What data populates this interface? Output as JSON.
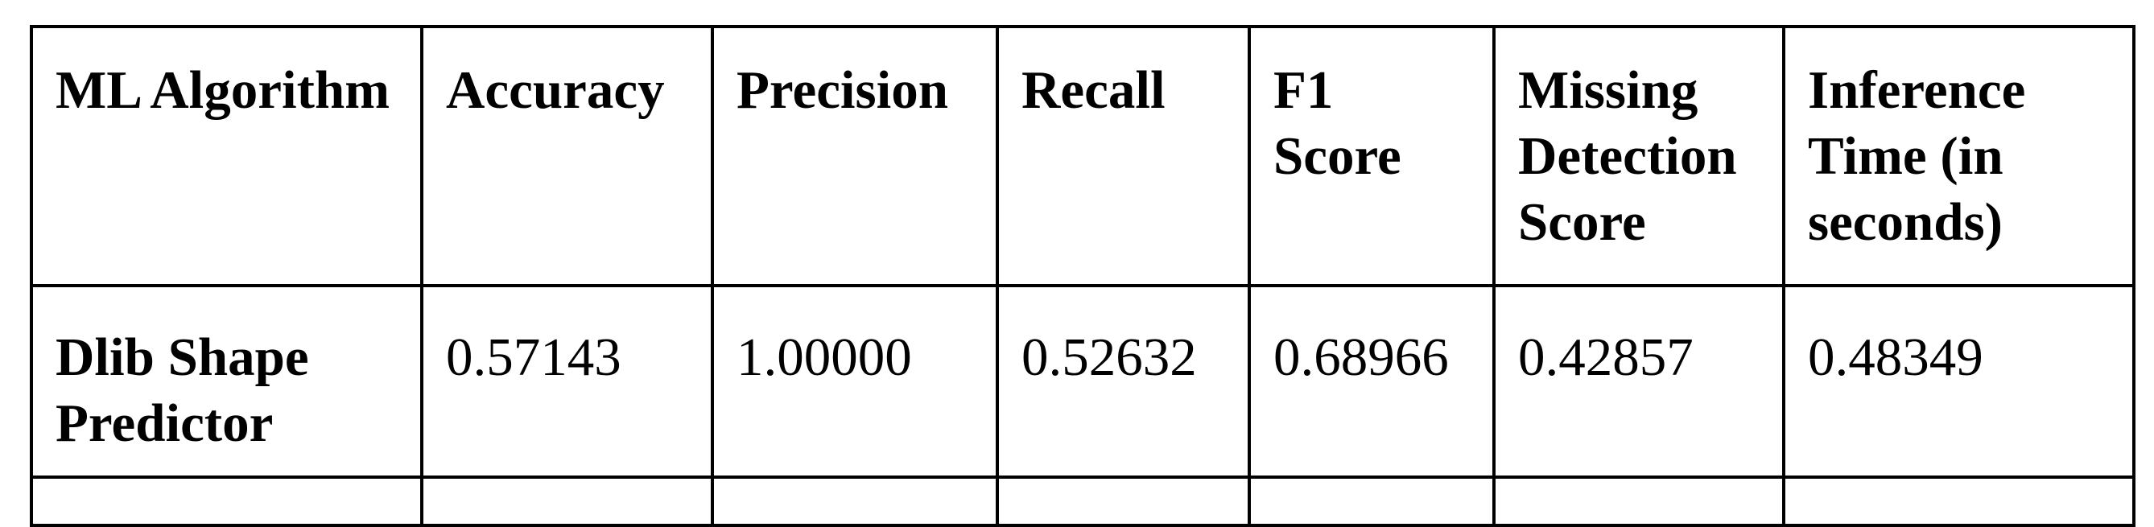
{
  "table": {
    "headers": [
      "ML Algorithm",
      "Accuracy",
      "Precision",
      "Recall",
      "F1 Score",
      "Missing Detection Score",
      "Inference Time (in seconds)"
    ],
    "rows": [
      {
        "label": "Dlib Shape Predictor",
        "values": [
          "0.57143",
          "1.00000",
          "0.52632",
          "0.68966",
          "0.42857",
          "0.48349"
        ]
      }
    ]
  }
}
